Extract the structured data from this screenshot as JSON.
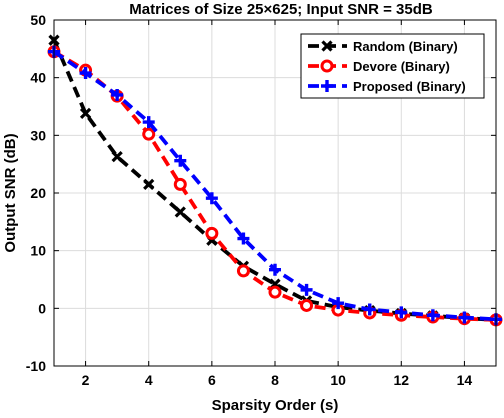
{
  "chart_data": {
    "type": "line",
    "title": "Matrices of Size 25×625; Input SNR = 35dB",
    "xlabel": "Sparsity Order (s)",
    "ylabel": "Output SNR (dB)",
    "xlim": [
      1,
      15
    ],
    "ylim": [
      -10,
      50
    ],
    "xticks": [
      2,
      4,
      6,
      8,
      10,
      12,
      14
    ],
    "yticks": [
      -10,
      0,
      10,
      20,
      30,
      40,
      50
    ],
    "grid": true,
    "legend_position": "top-right",
    "x": [
      1,
      2,
      3,
      4,
      5,
      6,
      7,
      8,
      9,
      10,
      11,
      12,
      13,
      14,
      15
    ],
    "series": [
      {
        "name": "Random (Binary)",
        "color": "#000000",
        "marker": "x",
        "values": [
          46.5,
          33.8,
          26.3,
          21.5,
          16.7,
          11.8,
          7.3,
          4.2,
          1.3,
          0.2,
          -0.4,
          -0.9,
          -1.3,
          -1.7,
          -2.0
        ]
      },
      {
        "name": "Devore (Binary)",
        "color": "#ff0000",
        "marker": "o",
        "values": [
          44.5,
          41.3,
          36.8,
          30.2,
          21.5,
          13.0,
          6.5,
          2.8,
          0.5,
          -0.3,
          -0.8,
          -1.2,
          -1.5,
          -1.8,
          -2.0
        ]
      },
      {
        "name": "Proposed (Binary)",
        "color": "#0000ff",
        "marker": "+",
        "values": [
          44.5,
          40.8,
          37.0,
          32.3,
          25.6,
          19.1,
          12.1,
          6.7,
          3.2,
          0.9,
          -0.2,
          -0.7,
          -1.2,
          -1.6,
          -1.9
        ]
      }
    ]
  }
}
